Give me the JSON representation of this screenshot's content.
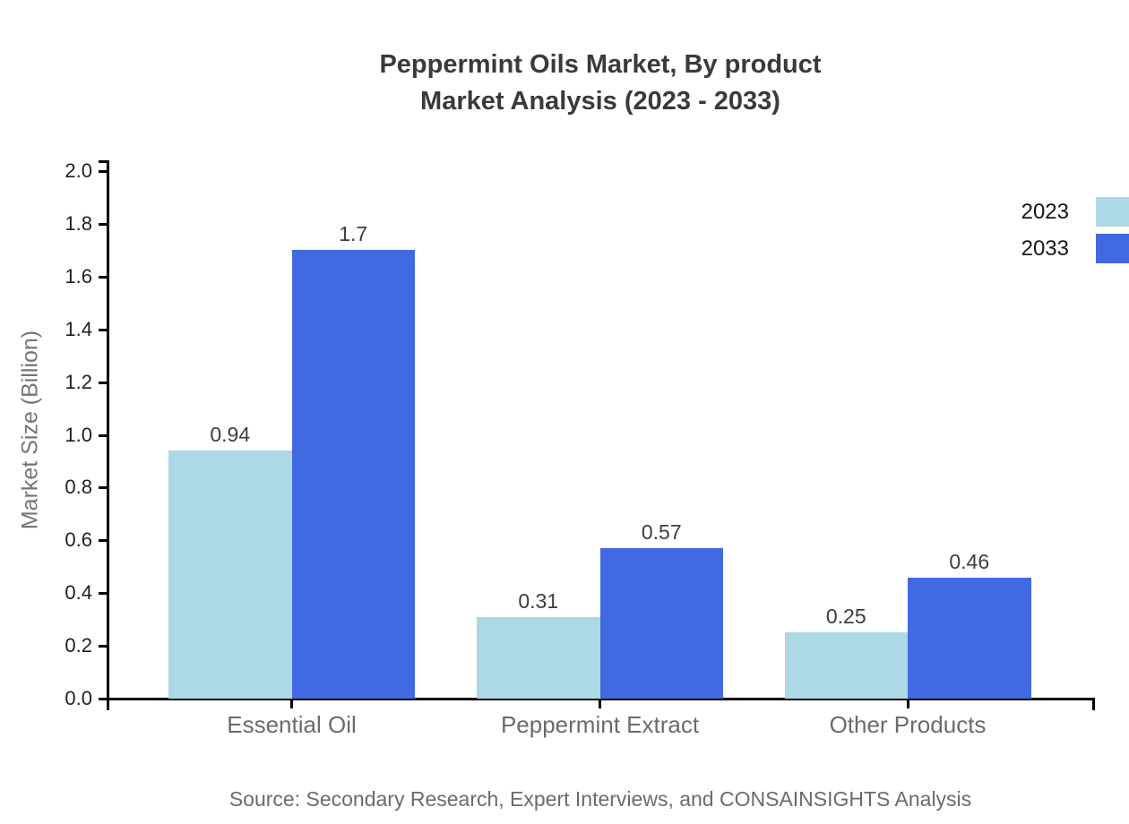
{
  "title_lines": [
    "Peppermint Oils Market, By product",
    "Market Analysis (2023 - 2033)"
  ],
  "y_axis": {
    "label": "Market Size (Billion)",
    "tick_labels": [
      "0.0",
      "0.2",
      "0.4",
      "0.6",
      "0.8",
      "1.0",
      "1.2",
      "1.4",
      "1.6",
      "1.8",
      "2.0"
    ]
  },
  "legend": {
    "items": [
      {
        "label": "2023",
        "color": "#ADD8E6"
      },
      {
        "label": "2033",
        "color": "#4169E1"
      }
    ]
  },
  "source": "Source: Secondary Research, Expert Interviews, and CONSAINSIGHTS Analysis",
  "chart_data": {
    "type": "bar",
    "title": "Peppermint Oils Market, By product Market Analysis (2023 - 2033)",
    "categories": [
      "Essential Oil",
      "Peppermint Extract",
      "Other Products"
    ],
    "series": [
      {
        "name": "2023",
        "color": "#ADD8E6",
        "values": [
          0.94,
          0.31,
          0.25
        ],
        "labels": [
          "0.94",
          "0.31",
          "0.25"
        ]
      },
      {
        "name": "2033",
        "color": "#4169E1",
        "values": [
          1.7,
          0.57,
          0.46
        ],
        "labels": [
          "1.7",
          "0.57",
          "0.46"
        ]
      }
    ],
    "xlabel": "",
    "ylabel": "Market Size (Billion)",
    "ylim": [
      0,
      2.0
    ],
    "ytick_step": 0.2,
    "grid": false,
    "legend_position": "right",
    "value_labels_shown": true
  }
}
